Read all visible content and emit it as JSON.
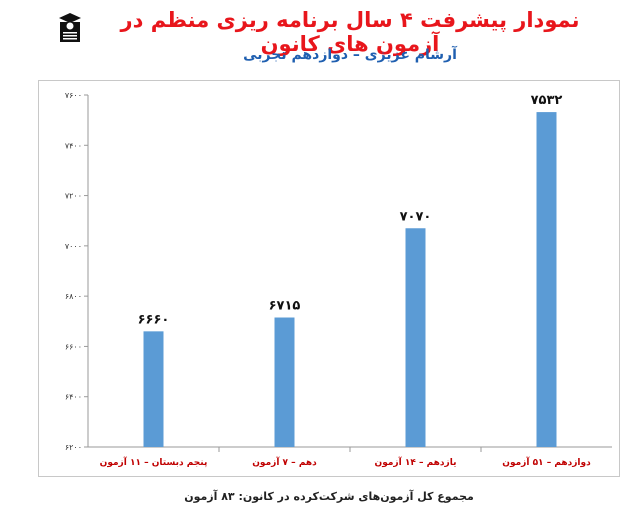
{
  "chart_data": {
    "type": "bar",
    "title": "نمودار پیشرفت ۴ سال برنامه ریزی منظم در آزمون های کانون",
    "subtitle": "آرشام عزیزی – دوازدهم تجربی",
    "categories": [
      "پنجم دبستان – ۱۱ آزمون",
      "دهم – ۷ آزمون",
      "یازدهم – ۱۴ آزمون",
      "دوازدهم – ۵۱ آزمون"
    ],
    "values": [
      6660,
      6715,
      7070,
      7532
    ],
    "data_labels": [
      "۶۶۶۰",
      "۶۷۱۵",
      "۷۰۷۰",
      "۷۵۳۲"
    ],
    "ylim": [
      6200,
      7600
    ],
    "yticks": [
      6200,
      6400,
      6600,
      6800,
      7000,
      7200,
      7400,
      7600
    ],
    "ytick_labels": [
      "۶۲۰۰",
      "۶۴۰۰",
      "۶۶۰۰",
      "۶۸۰۰",
      "۷۰۰۰",
      "۷۲۰۰",
      "۷۴۰۰",
      "۷۶۰۰"
    ],
    "bar_color": "#5b9bd5",
    "category_label_color": "#c00000",
    "grid": false,
    "legend": "none"
  },
  "footer": "مجموع کل آزمون‌های شرکت‌کرده در کانون: ۸۳ آزمون",
  "colors": {
    "title": "#e8161c",
    "subtitle": "#1f5fb0"
  }
}
